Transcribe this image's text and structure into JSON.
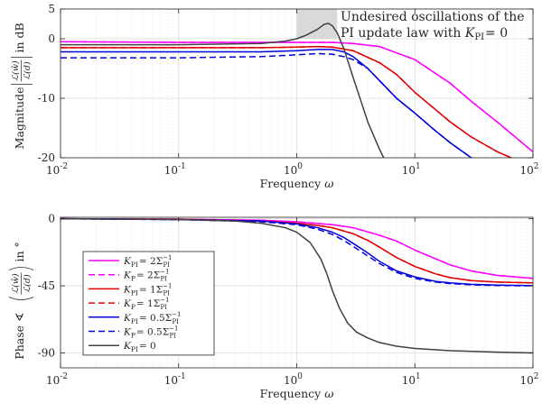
{
  "chart_data": [
    {
      "type": "line",
      "panel": "magnitude",
      "x_scale": "log",
      "xlim": [
        0.01,
        100
      ],
      "ylim": [
        -20,
        5
      ],
      "x_ticks": [
        0.01,
        0.1,
        1,
        10,
        100
      ],
      "x_tick_labels": [
        [
          "10",
          "-2"
        ],
        [
          "10",
          "-1"
        ],
        [
          "10",
          "0"
        ],
        [
          "10",
          "1"
        ],
        [
          "10",
          "2"
        ]
      ],
      "y_ticks": [
        5,
        0,
        -10,
        -20
      ],
      "y_tick_labels": [
        "5",
        "0",
        "-10",
        "-20"
      ],
      "xlabel": {
        "text": "Frequency ",
        "symbol": "ω"
      },
      "ylabel": {
        "prefix": "Magnitude",
        "numerator": "ℒ(ŵ)",
        "denominator": "ℒ(d)",
        "suffix": "in dB"
      },
      "grid": true,
      "highlight": {
        "x": [
          1,
          2.2
        ],
        "y": [
          0,
          5
        ],
        "color": "#d9d9d9"
      },
      "annotation": {
        "line1": "Undesired oscillations of the",
        "line2": "PI update law with ",
        "k_symbol": "K",
        "k_sub": "PI",
        "k_value": "= 0"
      },
      "series": [
        {
          "style": "kpi2",
          "x": [
            0.01,
            0.1,
            0.5,
            1,
            2,
            3,
            5,
            10,
            20,
            30,
            50,
            100
          ],
          "y": [
            -0.5,
            -0.6,
            -0.6,
            -0.6,
            -0.6,
            -0.8,
            -1.3,
            -3.5,
            -7.5,
            -10.5,
            -14,
            -19
          ]
        },
        {
          "style": "kp2",
          "x": [
            0.01,
            0.1,
            0.5,
            1,
            2,
            3,
            5,
            10,
            20,
            30,
            50,
            100
          ],
          "y": [
            -0.5,
            -0.6,
            -0.6,
            -0.6,
            -0.6,
            -0.8,
            -1.3,
            -3.5,
            -7.5,
            -10.5,
            -14,
            -19
          ]
        },
        {
          "style": "kpi1",
          "x": [
            0.01,
            0.1,
            0.5,
            1,
            1.5,
            2,
            3,
            5,
            7,
            10,
            20,
            30,
            50,
            75
          ],
          "y": [
            -1.5,
            -1.5,
            -1.5,
            -1.4,
            -1.3,
            -1.4,
            -2,
            -4,
            -6,
            -9,
            -14,
            -16.5,
            -19,
            -20.5
          ]
        },
        {
          "style": "kp1",
          "x": [
            0.01,
            0.1,
            0.5,
            1,
            1.5,
            2,
            3,
            5,
            7,
            10,
            20,
            30,
            50,
            75
          ],
          "y": [
            -1.5,
            -1.5,
            -1.5,
            -1.4,
            -1.3,
            -1.4,
            -2,
            -4,
            -6,
            -9,
            -14,
            -16.5,
            -19,
            -20.5
          ]
        },
        {
          "style": "kpi05",
          "x": [
            0.01,
            0.1,
            0.5,
            1,
            1.5,
            2,
            2.5,
            3,
            4,
            5,
            7,
            10,
            15,
            20,
            30,
            40
          ],
          "y": [
            -2.2,
            -2.2,
            -2.2,
            -2,
            -1.8,
            -1.8,
            -2.2,
            -3,
            -5,
            -7,
            -10,
            -12.5,
            -15.5,
            -17.5,
            -20,
            -21
          ]
        },
        {
          "style": "kp05",
          "x": [
            0.01,
            0.1,
            0.5,
            1,
            1.5,
            2,
            2.5,
            3,
            4,
            5,
            7,
            10,
            15,
            20,
            30,
            40
          ],
          "y": [
            -3.2,
            -3.2,
            -3,
            -2.7,
            -2.5,
            -2.6,
            -3,
            -3.5,
            -5,
            -7,
            -10,
            -12.5,
            -15.5,
            -17.5,
            -20,
            -21
          ]
        },
        {
          "style": "kpi0",
          "x": [
            0.01,
            0.1,
            0.5,
            0.8,
            1,
            1.2,
            1.5,
            1.7,
            1.85,
            2,
            2.2,
            2.5,
            3,
            3.5,
            4,
            5,
            5.6,
            6.5
          ],
          "y": [
            -1,
            -1,
            -0.8,
            -0.4,
            0,
            0.6,
            1.6,
            2.4,
            2.6,
            2.2,
            1,
            -1.6,
            -6.5,
            -10.5,
            -14,
            -18.5,
            -20.5,
            -22
          ]
        }
      ]
    },
    {
      "type": "line",
      "panel": "phase",
      "x_scale": "log",
      "xlim": [
        0.01,
        100
      ],
      "ylim": [
        -100,
        1
      ],
      "x_ticks": [
        0.01,
        0.1,
        1,
        10,
        100
      ],
      "x_tick_labels": [
        [
          "10",
          "-2"
        ],
        [
          "10",
          "-1"
        ],
        [
          "10",
          "0"
        ],
        [
          "10",
          "1"
        ],
        [
          "10",
          "2"
        ]
      ],
      "y_ticks": [
        0,
        -45,
        -90
      ],
      "y_tick_labels": [
        "0",
        "-45",
        "-90"
      ],
      "xlabel": {
        "text": "Frequency ",
        "symbol": "ω"
      },
      "ylabel": {
        "prefix": "Phase ∢",
        "numerator": "ℒ(ŵ)",
        "denominator": "ℒ(d)",
        "suffix": "in °"
      },
      "grid": true,
      "legend": {
        "placement": "center-left",
        "entries": [
          {
            "style": "kpi2",
            "sym": "K",
            "sub": "PI",
            "val": "= 2Σ",
            "vsub": "PI",
            "vsup": "−1"
          },
          {
            "style": "kp2",
            "sym": "K",
            "sub": "P",
            "val": "= 2Σ",
            "vsub": "PI",
            "vsup": "−1"
          },
          {
            "style": "kpi1",
            "sym": "K",
            "sub": "PI",
            "val": "= 1Σ",
            "vsub": "PI",
            "vsup": "−1"
          },
          {
            "style": "kp1",
            "sym": "K",
            "sub": "P",
            "val": "= 1Σ",
            "vsub": "PI",
            "vsup": "−1"
          },
          {
            "style": "kpi05",
            "sym": "K",
            "sub": "PI",
            "val": "= 0.5Σ",
            "vsub": "PI",
            "vsup": "−1"
          },
          {
            "style": "kp05",
            "sym": "K",
            "sub": "P",
            "val": "= 0.5Σ",
            "vsub": "PI",
            "vsup": "−1"
          },
          {
            "style": "kpi0",
            "sym": "K",
            "sub": "PI",
            "val": "= 0",
            "vsub": "",
            "vsup": ""
          }
        ]
      },
      "series": [
        {
          "style": "kpi2",
          "x": [
            0.01,
            0.1,
            0.5,
            1,
            2,
            3,
            5,
            7,
            10,
            20,
            30,
            50,
            100
          ],
          "y": [
            0,
            -0.3,
            -1,
            -2,
            -4,
            -6,
            -11,
            -15,
            -21,
            -31,
            -35,
            -38,
            -40
          ]
        },
        {
          "style": "kp2",
          "x": [
            0.01,
            0.1,
            0.5,
            1,
            2,
            3,
            5,
            7,
            10,
            20,
            30,
            50,
            100
          ],
          "y": [
            0,
            -0.3,
            -1,
            -2,
            -4,
            -6,
            -11,
            -15,
            -21,
            -31,
            -35,
            -38,
            -40
          ]
        },
        {
          "style": "kpi1",
          "x": [
            0.01,
            0.1,
            0.5,
            1,
            1.5,
            2,
            3,
            4,
            5,
            7,
            10,
            15,
            20,
            30,
            50,
            100
          ],
          "y": [
            0,
            -0.3,
            -1.5,
            -3,
            -4.5,
            -6,
            -10,
            -14.5,
            -19,
            -26,
            -32,
            -37,
            -39.5,
            -41.5,
            -42.5,
            -43
          ]
        },
        {
          "style": "kp1",
          "x": [
            0.01,
            0.1,
            0.5,
            1,
            1.5,
            2,
            3,
            4,
            5,
            7,
            10,
            15,
            20,
            30,
            50,
            100
          ],
          "y": [
            0,
            -0.3,
            -1.5,
            -3,
            -4.5,
            -6,
            -10,
            -14.5,
            -19,
            -26,
            -32,
            -37,
            -39.5,
            -41.5,
            -42.5,
            -43
          ]
        },
        {
          "style": "kpi05",
          "x": [
            0.01,
            0.1,
            0.5,
            1,
            1.5,
            2,
            2.5,
            3,
            4,
            5,
            7,
            10,
            15,
            20,
            30,
            50,
            100
          ],
          "y": [
            0,
            -0.5,
            -1.5,
            -3.5,
            -6,
            -9,
            -12.5,
            -16.5,
            -23,
            -28.5,
            -35,
            -39,
            -42,
            -43,
            -44,
            -44.5,
            -44.8
          ]
        },
        {
          "style": "kp05",
          "x": [
            0.01,
            0.1,
            0.5,
            1,
            1.5,
            2,
            2.5,
            3,
            4,
            5,
            7,
            10,
            15,
            20,
            30,
            50,
            100
          ],
          "y": [
            0,
            -0.6,
            -2,
            -4,
            -7,
            -10.5,
            -14.5,
            -18.5,
            -25,
            -30,
            -36,
            -40,
            -42.5,
            -43.5,
            -44.3,
            -44.8,
            -45
          ]
        },
        {
          "style": "kpi0",
          "x": [
            0.01,
            0.1,
            0.3,
            0.5,
            0.8,
            1,
            1.3,
            1.6,
            1.8,
            2,
            2.3,
            2.7,
            3.2,
            4,
            5,
            7,
            10,
            20,
            50,
            100
          ],
          "y": [
            0,
            -0.5,
            -1.5,
            -3,
            -6,
            -9,
            -16,
            -27,
            -37,
            -48,
            -60,
            -70,
            -76,
            -80,
            -83,
            -85.5,
            -87,
            -88.5,
            -89.5,
            -90
          ]
        }
      ]
    }
  ],
  "styles": {
    "kpi2": {
      "color": "#ff00ff",
      "dash": ""
    },
    "kp2": {
      "color": "#ff00ff",
      "dash": "7,4"
    },
    "kpi1": {
      "color": "#e00000",
      "dash": ""
    },
    "kp1": {
      "color": "#e00000",
      "dash": "7,4"
    },
    "kpi05": {
      "color": "#0000dd",
      "dash": ""
    },
    "kp05": {
      "color": "#0000dd",
      "dash": "7,4"
    },
    "kpi0": {
      "color": "#404040",
      "dash": ""
    }
  }
}
